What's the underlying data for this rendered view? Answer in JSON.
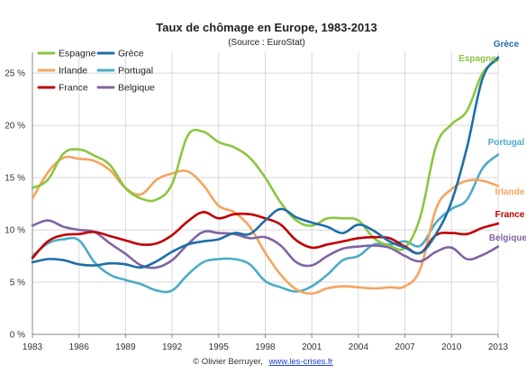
{
  "chart_data": {
    "type": "line",
    "title": "Taux de chômage en Europe, 1983-2013",
    "subtitle": "(Source : EuroStat)",
    "xlabel": "",
    "ylabel": "",
    "xlim": [
      1983,
      2013
    ],
    "ylim": [
      0,
      27
    ],
    "x_ticks": [
      1983,
      1986,
      1989,
      1992,
      1995,
      1998,
      2001,
      2004,
      2007,
      2010,
      2013
    ],
    "y_ticks": [
      {
        "value": 0,
        "label": "0 %"
      },
      {
        "value": 5,
        "label": "5 %"
      },
      {
        "value": 10,
        "label": "10 %"
      },
      {
        "value": 15,
        "label": "15 %"
      },
      {
        "value": 20,
        "label": "20 %"
      },
      {
        "value": 25,
        "label": "25 %"
      }
    ],
    "grid": true,
    "legend_position": "top-left",
    "series": [
      {
        "name": "Espagne",
        "color": "#8cc63f",
        "end_label": "Espagne",
        "x": [
          1983,
          1984,
          1985,
          1986,
          1987,
          1988,
          1989,
          1990,
          1991,
          1992,
          1993,
          1994,
          1995,
          1996,
          1997,
          1998,
          1999,
          2000,
          2001,
          2002,
          2003,
          2004,
          2005,
          2006,
          2007,
          2008,
          2009,
          2010,
          2011,
          2012,
          2013
        ],
        "values": [
          14.0,
          14.8,
          17.3,
          17.7,
          17.1,
          16.2,
          14.0,
          13.0,
          12.9,
          14.4,
          19.0,
          19.4,
          18.4,
          17.9,
          16.9,
          15.0,
          12.6,
          10.9,
          10.4,
          11.1,
          11.1,
          10.9,
          9.2,
          8.5,
          8.3,
          11.3,
          18.0,
          20.1,
          21.4,
          25.0,
          26.3
        ]
      },
      {
        "name": "Grèce",
        "color": "#1f6ea8",
        "end_label": "Grèce",
        "x": [
          1983,
          1984,
          1985,
          1986,
          1987,
          1988,
          1989,
          1990,
          1991,
          1992,
          1993,
          1994,
          1995,
          1996,
          1997,
          1998,
          1999,
          2000,
          2001,
          2002,
          2003,
          2004,
          2005,
          2006,
          2007,
          2008,
          2009,
          2010,
          2011,
          2012,
          2013
        ],
        "values": [
          6.9,
          7.2,
          7.1,
          6.7,
          6.6,
          6.8,
          6.7,
          6.4,
          7.0,
          7.9,
          8.6,
          8.9,
          9.1,
          9.7,
          9.6,
          10.9,
          12.0,
          11.2,
          10.7,
          10.3,
          9.7,
          10.5,
          9.9,
          8.9,
          8.3,
          7.8,
          9.6,
          12.7,
          17.9,
          24.5,
          26.5
        ]
      },
      {
        "name": "Irlande",
        "color": "#f4a460",
        "end_label": "Irlande",
        "x": [
          1983,
          1984,
          1985,
          1986,
          1987,
          1988,
          1989,
          1990,
          1991,
          1992,
          1993,
          1994,
          1995,
          1996,
          1997,
          1998,
          1999,
          2000,
          2001,
          2002,
          2003,
          2004,
          2005,
          2006,
          2007,
          2008,
          2009,
          2010,
          2011,
          2012,
          2013
        ],
        "values": [
          13.0,
          15.5,
          16.9,
          16.8,
          16.6,
          15.7,
          14.0,
          13.4,
          14.8,
          15.4,
          15.6,
          14.3,
          12.3,
          11.7,
          10.3,
          7.8,
          5.7,
          4.3,
          3.9,
          4.4,
          4.6,
          4.5,
          4.4,
          4.5,
          4.6,
          6.3,
          12.0,
          13.9,
          14.7,
          14.7,
          14.2
        ]
      },
      {
        "name": "Portugal",
        "color": "#4bacc6",
        "end_label": "Portugal",
        "x": [
          1983,
          1984,
          1985,
          1986,
          1987,
          1988,
          1989,
          1990,
          1991,
          1992,
          1993,
          1994,
          1995,
          1996,
          1997,
          1998,
          1999,
          2000,
          2001,
          2002,
          2003,
          2004,
          2005,
          2006,
          2007,
          2008,
          2009,
          2010,
          2011,
          2012,
          2013
        ],
        "values": [
          7.5,
          8.7,
          9.1,
          9.0,
          6.9,
          5.7,
          5.2,
          4.8,
          4.2,
          4.2,
          5.7,
          6.9,
          7.2,
          7.2,
          6.7,
          5.1,
          4.5,
          4.1,
          4.6,
          5.7,
          7.1,
          7.5,
          8.6,
          8.6,
          8.9,
          8.5,
          10.7,
          12.0,
          12.9,
          15.9,
          17.2
        ]
      },
      {
        "name": "France",
        "color": "#c00000",
        "end_label": "France",
        "x": [
          1983,
          1984,
          1985,
          1986,
          1987,
          1988,
          1989,
          1990,
          1991,
          1992,
          1993,
          1994,
          1995,
          1996,
          1997,
          1998,
          1999,
          2000,
          2001,
          2002,
          2003,
          2004,
          2005,
          2006,
          2007,
          2008,
          2009,
          2010,
          2011,
          2012,
          2013
        ],
        "values": [
          7.3,
          8.9,
          9.5,
          9.6,
          9.8,
          9.4,
          9.0,
          8.6,
          8.7,
          9.5,
          10.8,
          11.7,
          11.1,
          11.5,
          11.5,
          11.1,
          10.5,
          9.0,
          8.3,
          8.6,
          8.9,
          9.2,
          9.3,
          9.2,
          8.4,
          7.8,
          9.5,
          9.7,
          9.6,
          10.2,
          10.6
        ]
      },
      {
        "name": "Belgique",
        "color": "#8064a2",
        "end_label": "Belgique",
        "x": [
          1983,
          1984,
          1985,
          1986,
          1987,
          1988,
          1989,
          1990,
          1991,
          1992,
          1993,
          1994,
          1995,
          1996,
          1997,
          1998,
          1999,
          2000,
          2001,
          2002,
          2003,
          2004,
          2005,
          2006,
          2007,
          2008,
          2009,
          2010,
          2011,
          2012,
          2013
        ],
        "values": [
          10.4,
          10.9,
          10.3,
          10.0,
          9.8,
          8.7,
          7.7,
          6.6,
          6.4,
          7.1,
          8.6,
          9.8,
          9.7,
          9.6,
          9.2,
          9.3,
          8.5,
          6.9,
          6.6,
          7.5,
          8.2,
          8.4,
          8.5,
          8.3,
          7.5,
          7.0,
          7.9,
          8.3,
          7.2,
          7.6,
          8.4
        ]
      }
    ],
    "legend": [
      {
        "label": "Espagne",
        "color": "#8cc63f"
      },
      {
        "label": "Grèce",
        "color": "#1f6ea8"
      },
      {
        "label": "Irlande",
        "color": "#f4a460"
      },
      {
        "label": "Portugal",
        "color": "#4bacc6"
      },
      {
        "label": "France",
        "color": "#c00000"
      },
      {
        "label": "Belgique",
        "color": "#8064a2"
      }
    ]
  },
  "footer": {
    "credit": "© Olivier Berruyer,",
    "link": "www.les-crises.fr"
  }
}
